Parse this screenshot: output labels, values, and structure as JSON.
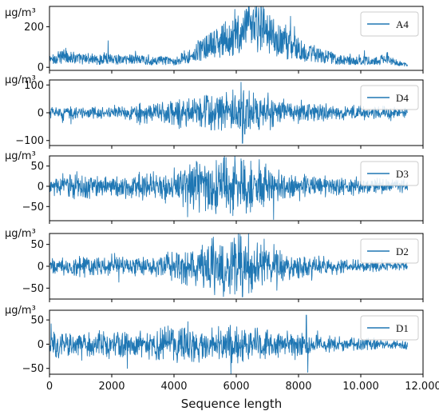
{
  "chart_data": [
    {
      "type": "line",
      "series": [
        {
          "name": "A4",
          "x_range": [
            0,
            11500
          ],
          "approx_values": [
            52,
            62,
            85,
            66,
            58,
            62,
            48,
            72,
            58,
            52,
            61,
            55,
            48,
            42,
            52,
            38,
            55,
            72,
            100,
            135,
            155,
            178,
            195,
            220,
            250,
            275,
            290,
            230,
            195,
            165,
            140,
            118,
            96,
            80,
            72,
            64,
            52,
            45,
            50,
            46,
            42,
            55,
            48,
            30,
            15
          ]
        }
      ],
      "ylabel": "μg/m³",
      "yticks": [
        "0",
        "200"
      ],
      "ylim": [
        -15,
        300
      ],
      "legend": "upper right"
    },
    {
      "type": "line",
      "series": [
        {
          "name": "D4",
          "x_range": [
            0,
            11500
          ],
          "envelope": [
            18,
            22,
            20,
            18,
            15,
            18,
            22,
            28,
            30,
            32,
            40,
            46,
            50,
            55,
            58,
            65,
            70,
            58,
            48,
            45,
            38,
            30,
            26,
            22,
            22,
            20,
            18,
            18,
            16,
            15
          ],
          "extremes": [
            {
              "x": 6150,
              "y": 110
            },
            {
              "x": 6200,
              "y": -110
            }
          ]
        }
      ],
      "ylabel": "μg/m³",
      "yticks": [
        "100",
        "0",
        "−100"
      ],
      "ylim": [
        -118,
        118
      ],
      "legend": "upper right"
    },
    {
      "type": "line",
      "series": [
        {
          "name": "D3",
          "x_range": [
            0,
            11500
          ],
          "envelope": [
            20,
            22,
            28,
            24,
            20,
            18,
            22,
            26,
            28,
            30,
            35,
            42,
            50,
            55,
            58,
            60,
            55,
            45,
            38,
            32,
            28,
            24,
            22,
            20,
            18,
            18,
            16,
            16,
            14,
            12
          ],
          "extremes": [
            {
              "x": 6150,
              "y": 68
            },
            {
              "x": 7200,
              "y": 62
            },
            {
              "x": 7200,
              "y": -82
            }
          ]
        }
      ],
      "ylabel": "μg/m³",
      "yticks": [
        "50",
        "0",
        "−50"
      ],
      "ylim": [
        -85,
        75
      ],
      "legend": "upper right"
    },
    {
      "type": "line",
      "series": [
        {
          "name": "D2",
          "x_range": [
            0,
            11500
          ],
          "envelope": [
            14,
            16,
            18,
            20,
            18,
            16,
            18,
            20,
            22,
            25,
            30,
            35,
            40,
            50,
            55,
            58,
            52,
            44,
            36,
            30,
            24,
            20,
            18,
            15,
            13,
            12,
            10,
            10,
            9,
            8
          ],
          "extremes": [
            {
              "x": 6150,
              "y": 68
            },
            {
              "x": 6200,
              "y": -70
            },
            {
              "x": 7300,
              "y": -55
            }
          ]
        }
      ],
      "ylabel": "μg/m³",
      "yticks": [
        "50",
        "0",
        "−50"
      ],
      "ylim": [
        -75,
        75
      ],
      "legend": "upper right"
    },
    {
      "type": "line",
      "series": [
        {
          "name": "D1",
          "x_range": [
            0,
            11500
          ],
          "envelope": [
            20,
            22,
            22,
            20,
            22,
            24,
            22,
            24,
            26,
            28,
            30,
            32,
            30,
            28,
            30,
            32,
            30,
            26,
            24,
            22,
            20,
            18,
            16,
            14,
            12,
            10,
            10,
            9,
            8,
            8
          ],
          "extremes": [
            {
              "x": 50,
              "y": 42
            },
            {
              "x": 2500,
              "y": -50
            },
            {
              "x": 8250,
              "y": 60
            },
            {
              "x": 8300,
              "y": -58
            }
          ]
        }
      ],
      "ylabel": "μg/m³",
      "yticks": [
        "50",
        "0",
        "−50"
      ],
      "ylim": [
        -62,
        70
      ],
      "legend": "upper right",
      "xlabel": "Sequence length",
      "xticks": [
        "0",
        "2000",
        "4000",
        "6000",
        "8000",
        "10.000",
        "12.000"
      ]
    }
  ],
  "style": {
    "line_color": "#1f77b4",
    "stroke_color": "#000000"
  }
}
